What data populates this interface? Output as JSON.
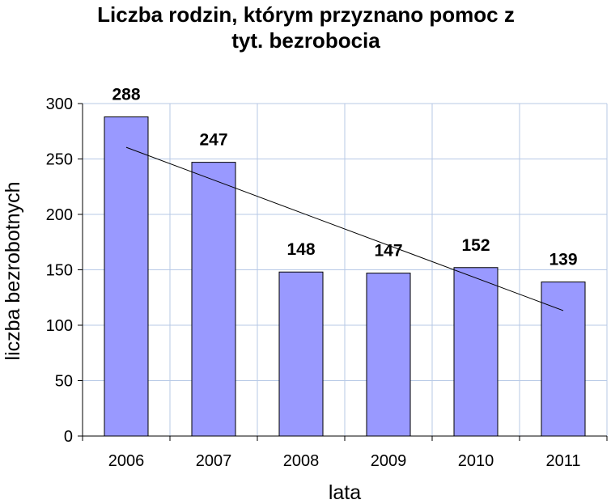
{
  "chart_data": {
    "type": "bar",
    "title": "Liczba rodzin, którym przyznano pomoc z tyt. bezrobocia",
    "title_lines": [
      "Liczba rodzin, którym przyznano pomoc z",
      "tyt. bezrobocia"
    ],
    "xlabel": "lata",
    "ylabel": "liczba bezrobotnych",
    "categories": [
      "2006",
      "2007",
      "2008",
      "2009",
      "2010",
      "2011"
    ],
    "values": [
      288,
      247,
      148,
      147,
      152,
      139
    ],
    "data_labels": [
      "288",
      "247",
      "148",
      "147",
      "152",
      "139"
    ],
    "ylim": [
      0,
      300
    ],
    "yticks": [
      "0",
      "50",
      "100",
      "150",
      "200",
      "250",
      "300"
    ],
    "grid": true,
    "legend": "none",
    "trendline": "linear",
    "colors": {
      "bar_fill": "#9999ff",
      "bar_stroke": "#000000",
      "grid": "#b7c9e6",
      "trend": "#000000"
    }
  }
}
